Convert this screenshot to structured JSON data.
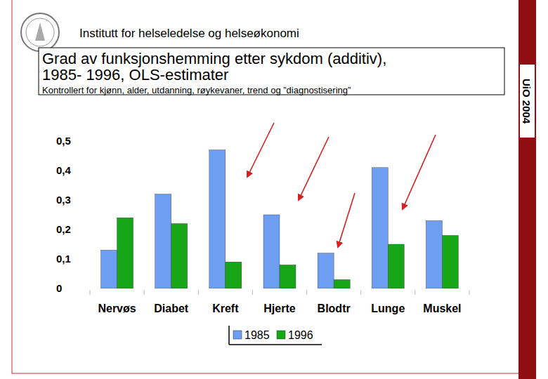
{
  "header": "Institutt for helseledelse og helseøkonomi",
  "side_label": "UiO 2004",
  "chart_data": {
    "type": "bar",
    "title": [
      "Grad av funksjonshemming etter sykdom (additiv),",
      "1985- 1996, OLS-estimater"
    ],
    "subtitle": "Kontrollert for kjønn, alder, utdanning, røykevaner, trend og ”diagnostisering”",
    "categories": [
      "Nervøs",
      "Diabet",
      "Kreft",
      "Hjerte",
      "Blodtr",
      "Lunge",
      "Muskel"
    ],
    "series": [
      {
        "name": "1985",
        "color": "#6e9ef2",
        "values": [
          0.13,
          0.32,
          0.47,
          0.25,
          0.12,
          0.41,
          0.23
        ]
      },
      {
        "name": "1996",
        "color": "#17a617",
        "values": [
          0.24,
          0.22,
          0.09,
          0.08,
          0.03,
          0.15,
          0.18
        ]
      }
    ],
    "ylim": [
      0,
      0.5
    ],
    "yticks": [
      0,
      {
        "value": 0.1,
        "label": "0,1"
      },
      {
        "value": 0.2,
        "label": "0,2"
      },
      {
        "value": 0.3,
        "label": "0,3"
      },
      {
        "value": 0.4,
        "label": "0,4"
      },
      {
        "value": 0.5,
        "label": "0,5"
      }
    ],
    "grid": false,
    "legend": "bottom"
  }
}
